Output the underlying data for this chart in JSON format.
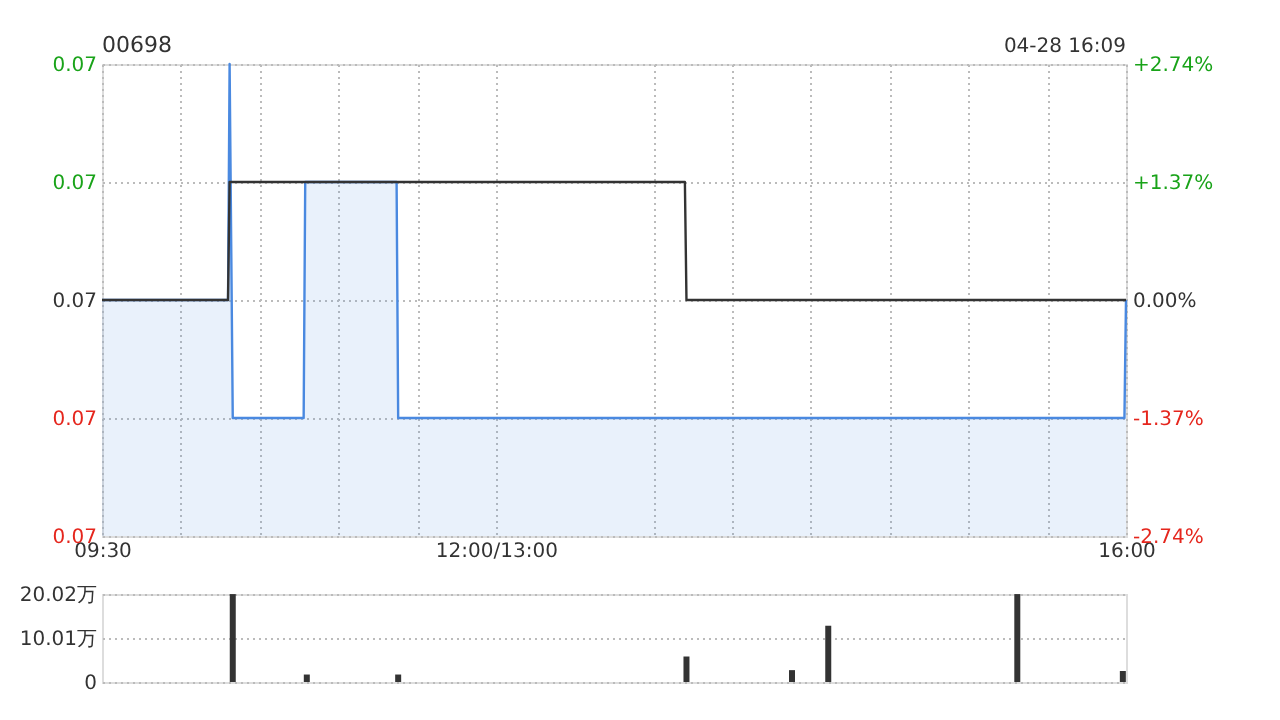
{
  "chart_data": [
    {
      "type": "line",
      "title": "00698",
      "annotations": [
        "04-28 16:09"
      ],
      "xlim": [
        9.5,
        16
      ],
      "xticks": [
        {
          "value": 9.5,
          "label": "09:30"
        },
        {
          "value": 10,
          "label": null
        },
        {
          "value": 10.5,
          "label": null
        },
        {
          "value": 11,
          "label": null
        },
        {
          "value": 11.5,
          "label": null
        },
        {
          "value": 12,
          "label": "12:00/13:00"
        },
        {
          "value": 13,
          "label": null
        },
        {
          "value": 13.5,
          "label": null
        },
        {
          "value": 14,
          "label": null
        },
        {
          "value": 14.5,
          "label": null
        },
        {
          "value": 15,
          "label": null
        },
        {
          "value": 15.5,
          "label": null
        },
        {
          "value": 16,
          "label": "16:00"
        }
      ],
      "ylim": [
        0.071,
        0.075
      ],
      "yticks": [
        {
          "value": 0.071,
          "label": "0.07"
        },
        {
          "value": 0.072,
          "label": "0.07"
        },
        {
          "value": 0.073,
          "label": "0.07"
        },
        {
          "value": 0.074,
          "label": "0.07"
        },
        {
          "value": 0.075,
          "label": "0.07"
        }
      ],
      "y2lim": [
        -2.74,
        2.74
      ],
      "y2ticks": [
        {
          "value": -2.74,
          "label": "-2.74%"
        },
        {
          "value": -1.37,
          "label": "-1.37%"
        },
        {
          "value": 0,
          "label": "0.00%"
        },
        {
          "value": 1.37,
          "label": "+1.37%"
        },
        {
          "value": 2.74,
          "label": "+2.74%"
        }
      ],
      "grid": true,
      "line_style": "solid",
      "series": [
        {
          "type": "area",
          "color": "#4a89e0",
          "x": [
            9.5,
            10.3,
            10.31,
            10.33,
            10.78,
            10.79,
            11.37,
            11.38,
            15.99,
            16
          ],
          "values": [
            0.073,
            0.073,
            0.075,
            0.072,
            0.072,
            0.074,
            0.074,
            0.072,
            0.072,
            0.073
          ]
        },
        {
          "type": "line",
          "color": "#333333",
          "x": [
            9.5,
            10.3,
            10.31,
            13.2,
            13.21,
            16
          ],
          "values": [
            0.073,
            0.073,
            0.074,
            0.074,
            0.073,
            0.073
          ]
        }
      ]
    },
    {
      "type": "bar",
      "xlim": [
        9.5,
        16
      ],
      "ylim": [
        0,
        20.02
      ],
      "yticks": [
        {
          "value": 0,
          "label": "0"
        },
        {
          "value": 10.01,
          "label": "10.01万"
        },
        {
          "value": 20.02,
          "label": "20.02万"
        }
      ],
      "grid": "y",
      "tick_labels": "y",
      "x": [
        10.33,
        10.8,
        11.38,
        13.21,
        13.88,
        14.11,
        15.31,
        15.98
      ],
      "series": [
        {
          "color": "#333333",
          "values": [
            20.0,
            1.7,
            1.7,
            5.8,
            2.7,
            12.8,
            20.0,
            2.5
          ]
        }
      ]
    }
  ]
}
